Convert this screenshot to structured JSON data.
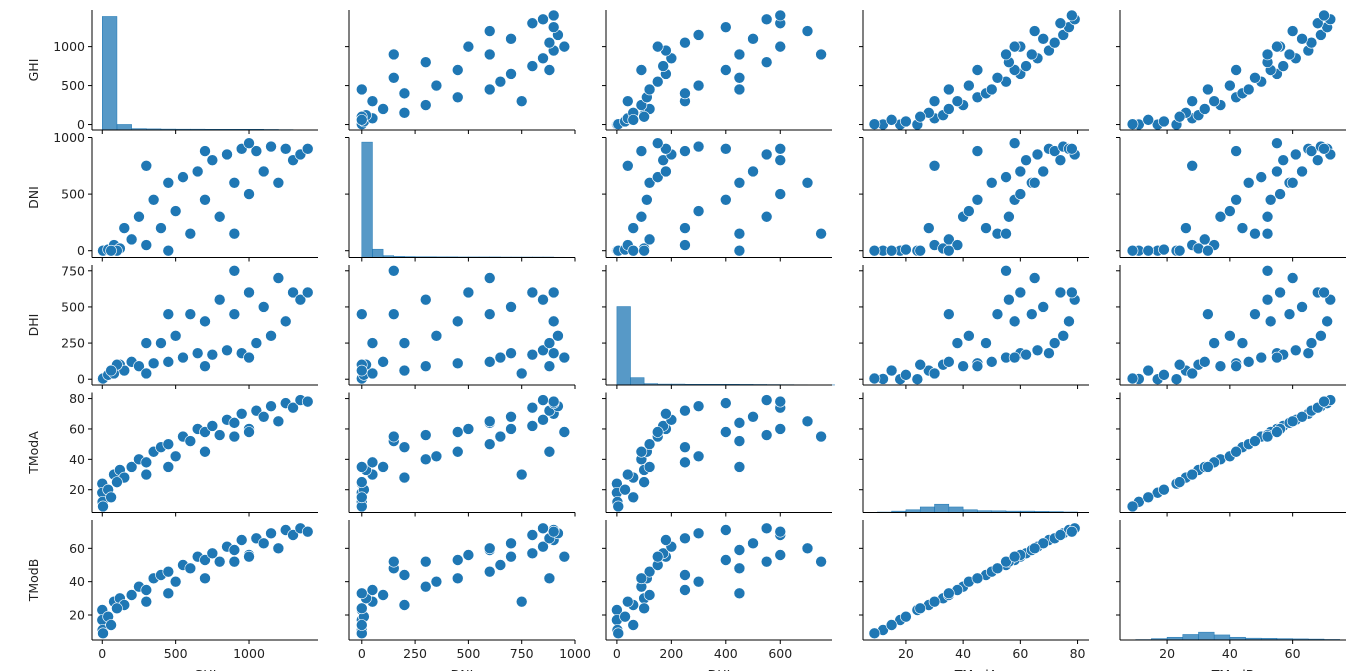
{
  "chart_data": {
    "type": "pairplot",
    "color": "#1f77b4",
    "variables": [
      {
        "name": "GHI",
        "lim": [
          -70,
          1470
        ],
        "ticks": [
          0,
          500,
          1000
        ]
      },
      {
        "name": "DNI",
        "lim": [
          -60,
          1000
        ],
        "ticks": [
          0,
          250,
          500,
          750,
          1000
        ]
      },
      {
        "name": "DHI",
        "lim": [
          -40,
          790
        ],
        "ticks": [
          0,
          200,
          400,
          600
        ]
      },
      {
        "name": "TModA",
        "lim": [
          5,
          84
        ],
        "ticks": [
          20,
          40,
          60,
          80
        ]
      },
      {
        "name": "TModB",
        "lim": [
          5,
          77
        ],
        "ticks": [
          20,
          40,
          60
        ]
      }
    ],
    "row_ticks": [
      [
        0,
        500,
        1000
      ],
      [
        0,
        500,
        1000
      ],
      [
        0,
        250,
        500,
        750
      ],
      [
        20,
        40,
        60,
        80
      ],
      [
        20,
        40,
        60
      ]
    ],
    "data": {
      "GHI": [
        0,
        0,
        2,
        5,
        40,
        80,
        120,
        150,
        200,
        250,
        300,
        350,
        400,
        450,
        500,
        550,
        600,
        650,
        700,
        750,
        800,
        850,
        900,
        950,
        1000,
        1050,
        1100,
        1150,
        1200,
        1250,
        1300,
        1350,
        1400,
        100,
        60,
        450,
        900,
        300,
        700,
        1000
      ],
      "DNI": [
        0,
        0,
        0,
        0,
        10,
        50,
        20,
        200,
        100,
        300,
        50,
        450,
        200,
        600,
        350,
        650,
        150,
        700,
        450,
        800,
        300,
        850,
        600,
        900,
        500,
        880,
        700,
        920,
        600,
        900,
        800,
        850,
        900,
        0,
        0,
        0,
        150,
        750,
        880,
        950
      ],
      "DHI": [
        0,
        0,
        2,
        5,
        30,
        40,
        100,
        60,
        120,
        90,
        250,
        110,
        250,
        120,
        300,
        150,
        450,
        180,
        400,
        170,
        550,
        200,
        450,
        180,
        600,
        250,
        500,
        300,
        700,
        400,
        600,
        550,
        600,
        100,
        60,
        450,
        750,
        40,
        90,
        150
      ],
      "TModA": [
        24,
        18,
        12,
        9,
        20,
        30,
        33,
        28,
        35,
        40,
        38,
        45,
        48,
        50,
        42,
        55,
        52,
        60,
        58,
        62,
        56,
        66,
        64,
        70,
        60,
        72,
        68,
        75,
        65,
        77,
        74,
        79,
        78,
        25,
        15,
        35,
        55,
        30,
        45,
        58
      ],
      "TModB": [
        23,
        17,
        11,
        9,
        19,
        28,
        30,
        26,
        32,
        37,
        35,
        42,
        44,
        46,
        40,
        50,
        48,
        55,
        53,
        57,
        52,
        61,
        59,
        65,
        56,
        66,
        63,
        69,
        60,
        71,
        68,
        72,
        70,
        24,
        14,
        33,
        52,
        28,
        42,
        55
      ]
    },
    "count_lim": [
      0,
      1300
    ],
    "histograms": [
      {
        "bins": [
          0,
          100,
          200,
          300,
          400,
          500,
          600,
          700,
          800,
          900,
          1000,
          1100,
          1200,
          1300,
          1400
        ],
        "counts": [
          1230,
          60,
          15,
          12,
          10,
          9,
          9,
          8,
          8,
          8,
          8,
          6,
          4,
          2
        ]
      },
      {
        "bins": [
          0,
          50,
          100,
          150,
          200,
          250,
          300,
          350,
          400,
          450,
          500,
          550,
          600,
          650,
          700,
          750,
          800,
          850,
          900,
          950
        ],
        "counts": [
          1250,
          90,
          20,
          12,
          10,
          8,
          8,
          7,
          7,
          6,
          6,
          6,
          6,
          5,
          5,
          5,
          5,
          5,
          3
        ]
      },
      {
        "bins": [
          0,
          50,
          100,
          150,
          200,
          250,
          300,
          350,
          400,
          450,
          500,
          550,
          600,
          650,
          700,
          750,
          800
        ],
        "counts": [
          850,
          80,
          15,
          10,
          10,
          8,
          8,
          8,
          8,
          7,
          6,
          5,
          4,
          3,
          2,
          1
        ]
      },
      {
        "bins": [
          10,
          15,
          20,
          25,
          30,
          35,
          40,
          45,
          50,
          55,
          60,
          65,
          70,
          75,
          80
        ],
        "counts": [
          5,
          15,
          30,
          60,
          90,
          60,
          30,
          20,
          18,
          15,
          15,
          12,
          10,
          6
        ]
      },
      {
        "bins": [
          10,
          15,
          20,
          25,
          30,
          35,
          40,
          45,
          50,
          55,
          60,
          65,
          70,
          75
        ],
        "counts": [
          5,
          15,
          30,
          60,
          85,
          55,
          30,
          20,
          18,
          15,
          12,
          10,
          6
        ]
      }
    ]
  }
}
